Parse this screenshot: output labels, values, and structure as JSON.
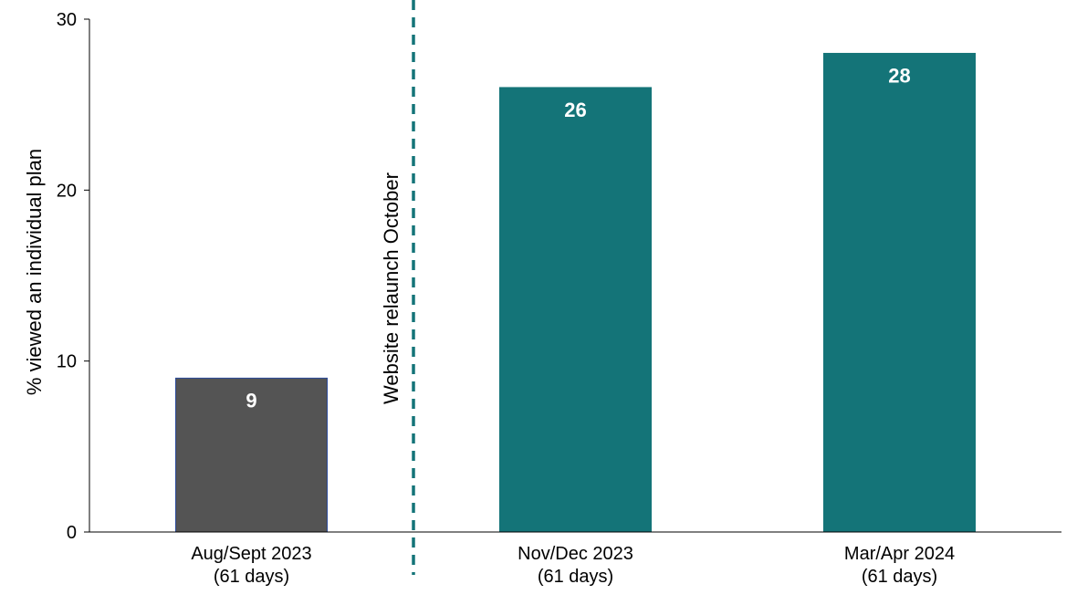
{
  "chart_data": {
    "type": "bar",
    "categories": [
      [
        "Aug/Sept 2023",
        "(61 days)"
      ],
      [
        "Nov/Dec 2023",
        "(61 days)"
      ],
      [
        "Mar/Apr 2024",
        "(61 days)"
      ]
    ],
    "values": [
      9,
      26,
      28
    ],
    "data_labels": [
      "9",
      "26",
      "28"
    ],
    "bar_colors": [
      "#545454",
      "#147478",
      "#147478"
    ],
    "bar_outline_colors": [
      "#2b4a9a",
      "#147478",
      "#147478"
    ],
    "ylabel": "% viewed an individual plan",
    "xlabel": "",
    "ylim": [
      0,
      30
    ],
    "yticks": [
      0,
      10,
      20,
      30
    ],
    "grid": false,
    "annotation": {
      "text": "Website relaunch October",
      "between_categories": [
        0,
        1
      ],
      "line_style": "dashed",
      "color": "#147478"
    }
  }
}
